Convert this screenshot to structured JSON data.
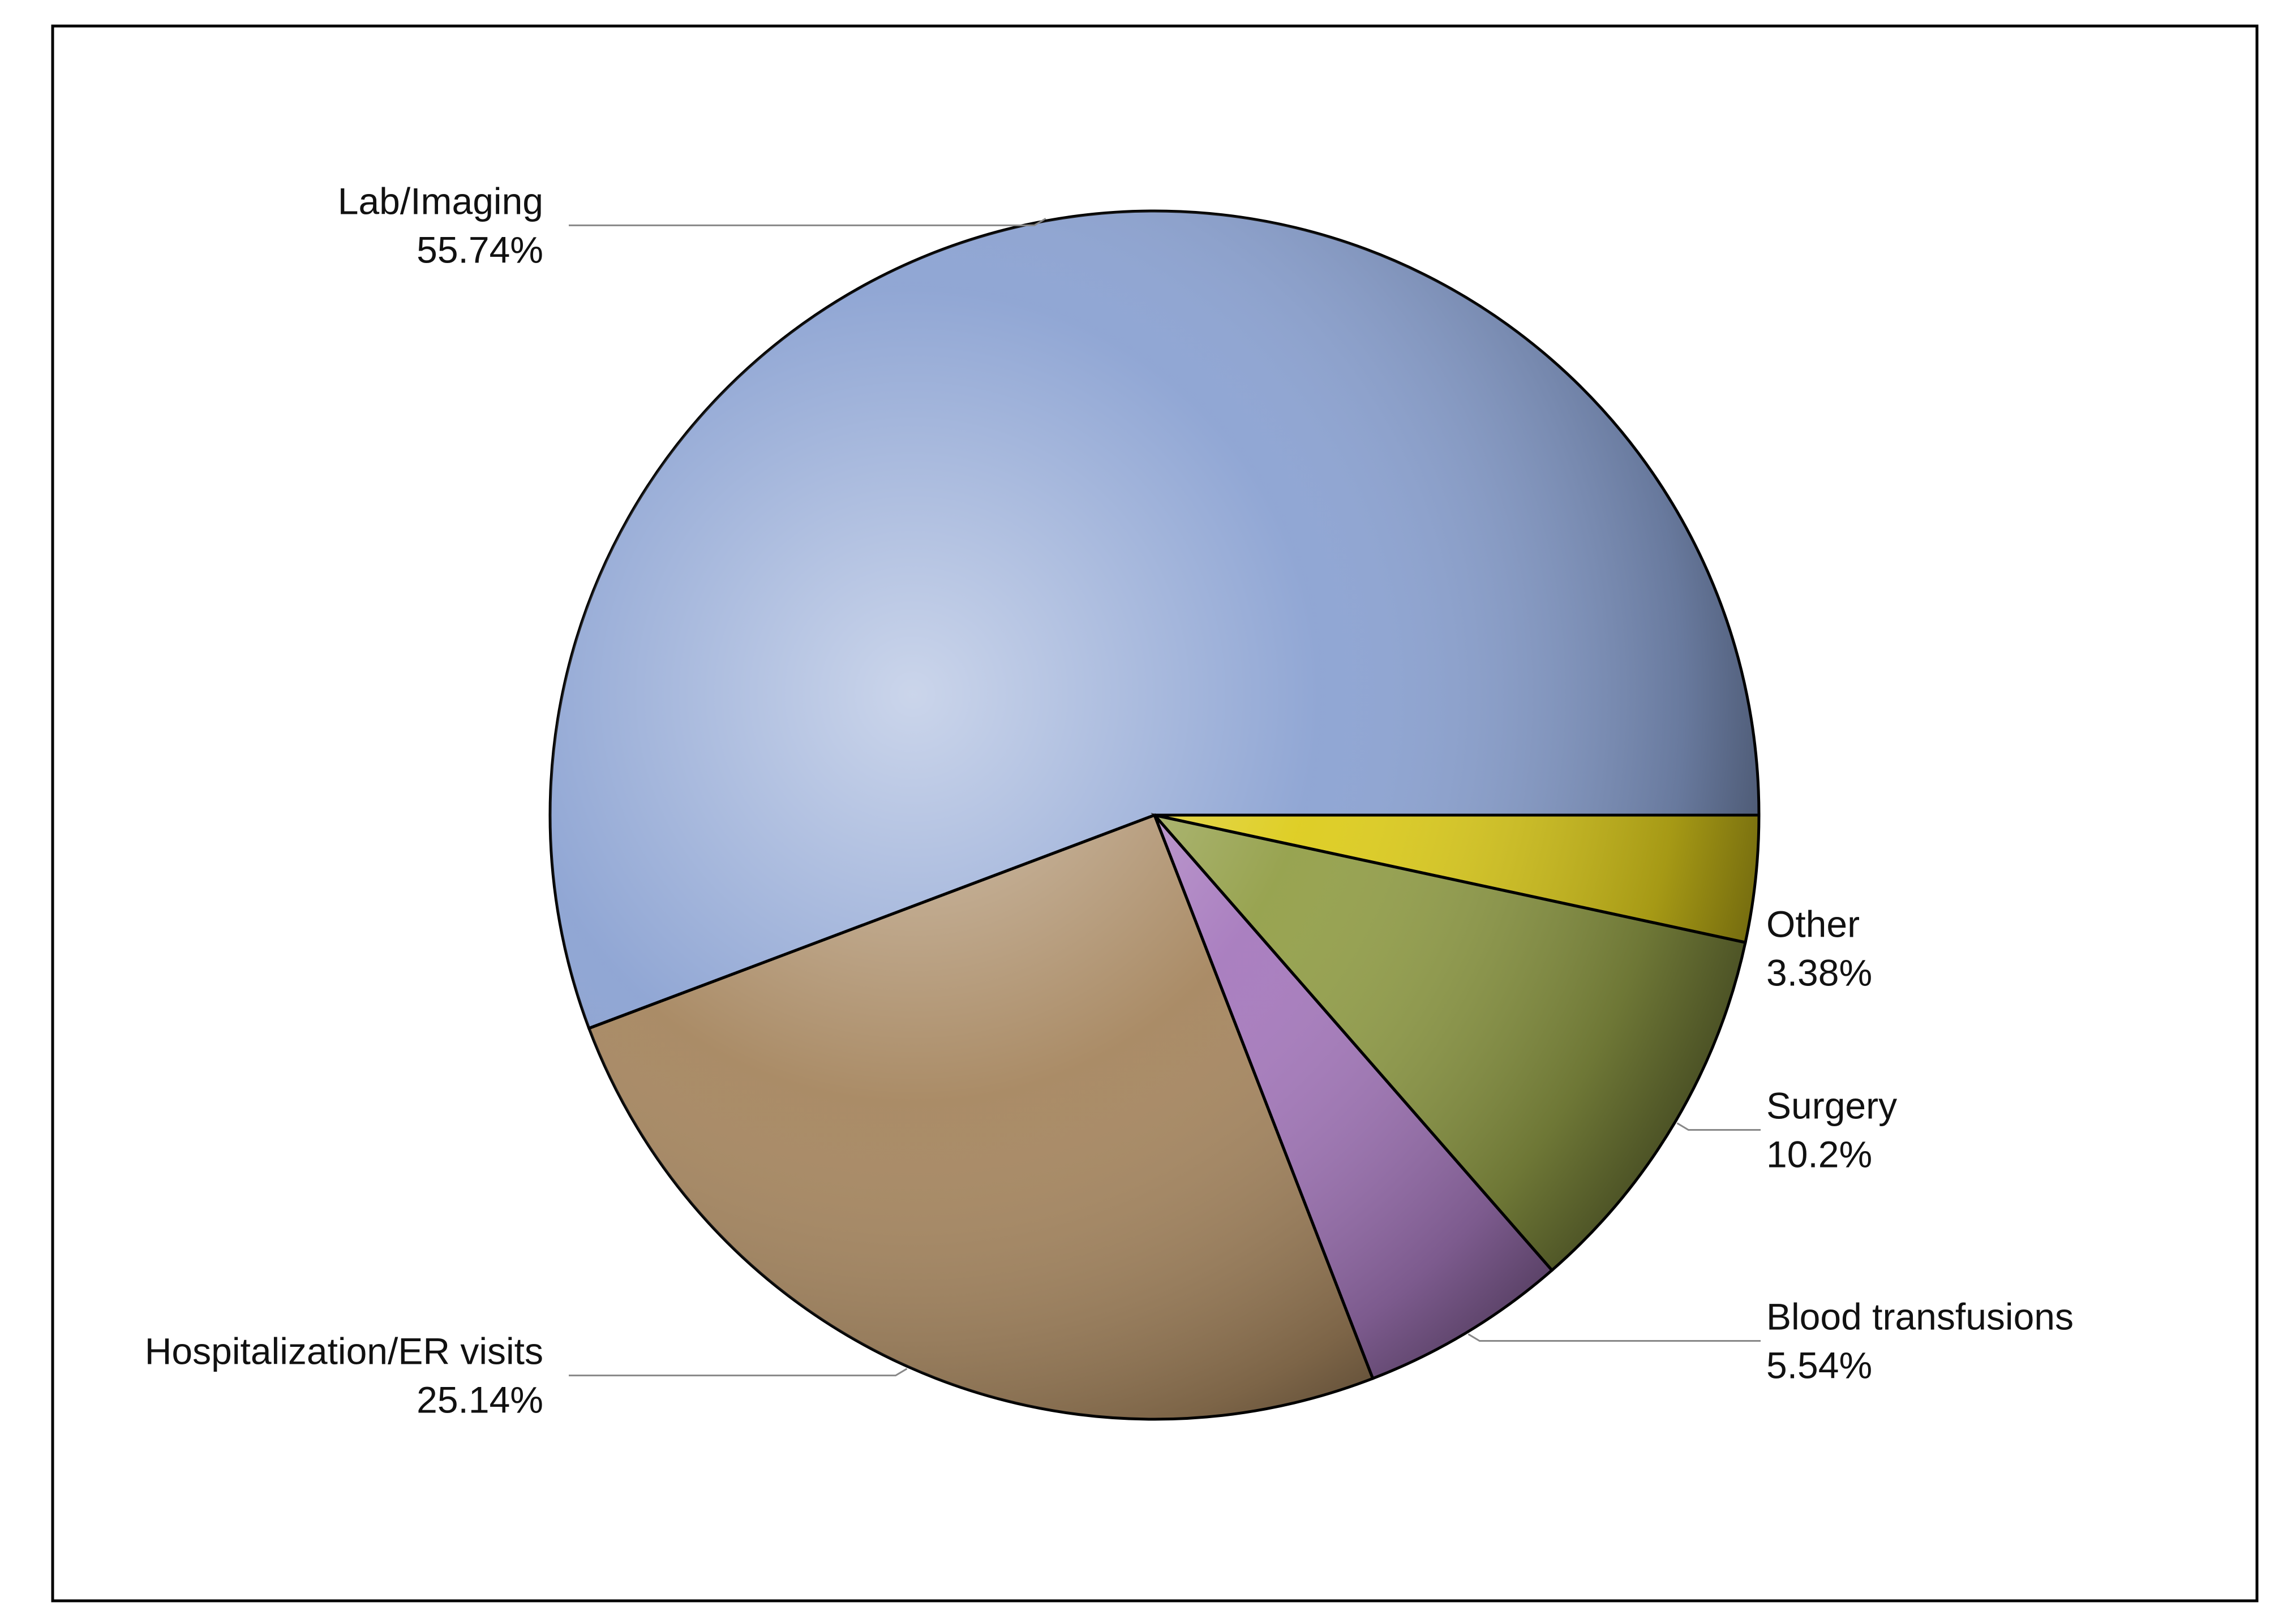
{
  "chart_data": {
    "type": "pie",
    "categories": [
      "Lab/Imaging",
      "Hospitalization/ER visits",
      "Blood transfusions",
      "Surgery",
      "Other"
    ],
    "values": [
      55.74,
      25.14,
      5.54,
      10.2,
      3.38
    ],
    "value_labels": [
      "55.74%",
      "25.14%",
      "5.54%",
      "10.2%",
      "3.38%"
    ],
    "colors": [
      "#8ba2d2",
      "#a6865f",
      "#a679bd",
      "#939f48",
      "#ddcc1c"
    ]
  }
}
